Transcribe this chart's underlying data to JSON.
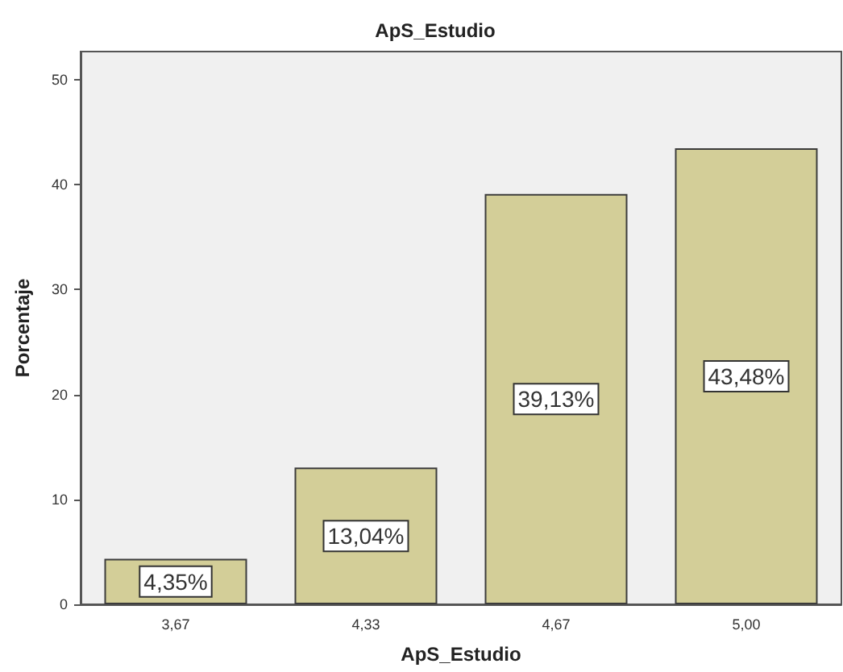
{
  "chart_data": {
    "type": "bar",
    "title": "ApS_Estudio",
    "xlabel": "ApS_Estudio",
    "ylabel": "Porcentaje",
    "categories": [
      "3,67",
      "4,33",
      "4,67",
      "5,00"
    ],
    "values": [
      4.35,
      13.04,
      39.13,
      43.48
    ],
    "value_labels": [
      "4,35%",
      "13,04%",
      "39,13%",
      "43,48%"
    ],
    "color": "#d3ce98",
    "ylim": [
      0,
      52.7
    ],
    "yticks": [
      0,
      10,
      20,
      30,
      40,
      50
    ],
    "grid": false
  }
}
